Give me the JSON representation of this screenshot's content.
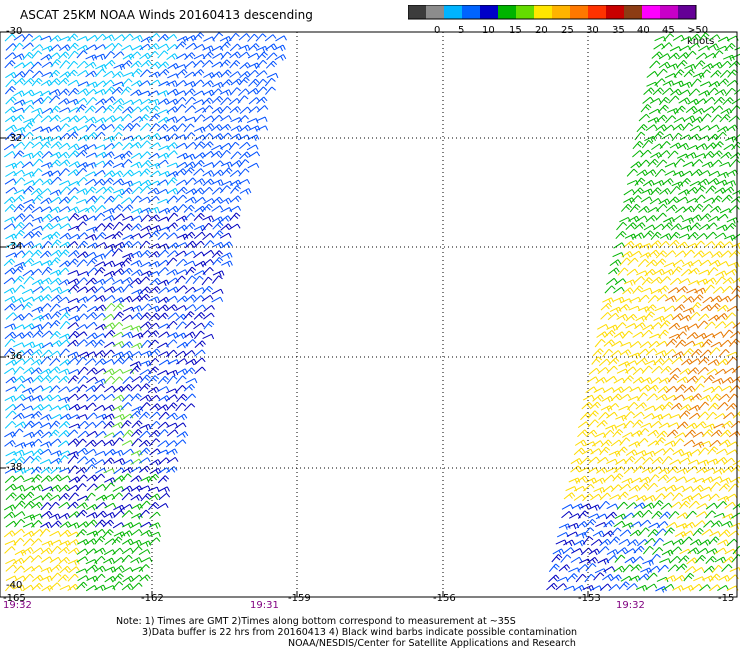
{
  "title": "ASCAT 25KM NOAA Winds 20160413 descending",
  "colorbar": {
    "labels": [
      "0",
      "5",
      "10",
      "15",
      "20",
      "25",
      "30",
      "35",
      "40",
      "45",
      ">50 knots"
    ],
    "colors": [
      "#3c3c3c",
      "#8c8c8c",
      "#00b4ff",
      "#0064ff",
      "#0000c8",
      "#00b400",
      "#64dc00",
      "#ffe600",
      "#ffb400",
      "#ff7800",
      "#ff3200",
      "#c80000",
      "#8c3c14",
      "#ff00ff",
      "#c800c8",
      "#640096"
    ]
  },
  "axes": {
    "lat_labels": [
      "-30",
      "-32",
      "-34",
      "-36",
      "-38",
      "-40"
    ],
    "lon_labels": [
      "-165",
      "-162",
      "-159",
      "-156",
      "-153",
      "-15"
    ]
  },
  "times": [
    "19:32",
    "19:31",
    "19:32"
  ],
  "notes": [
    "Note: 1) Times are GMT 2)Times along bottom correspond to measurement at ~35S",
    "3)Data buffer is 22 hrs from 20160413 4) Black wind barbs indicate possible contamination",
    "NOAA/NESDIS/Center for Satellite Applications and Research"
  ],
  "wind_colors": {
    "cyan": "#00c8ff",
    "blue": "#0050ff",
    "navy": "#0000c0",
    "green": "#00b400",
    "lime": "#64dc32",
    "yellow": "#ffdc00",
    "orange": "#e67800"
  }
}
